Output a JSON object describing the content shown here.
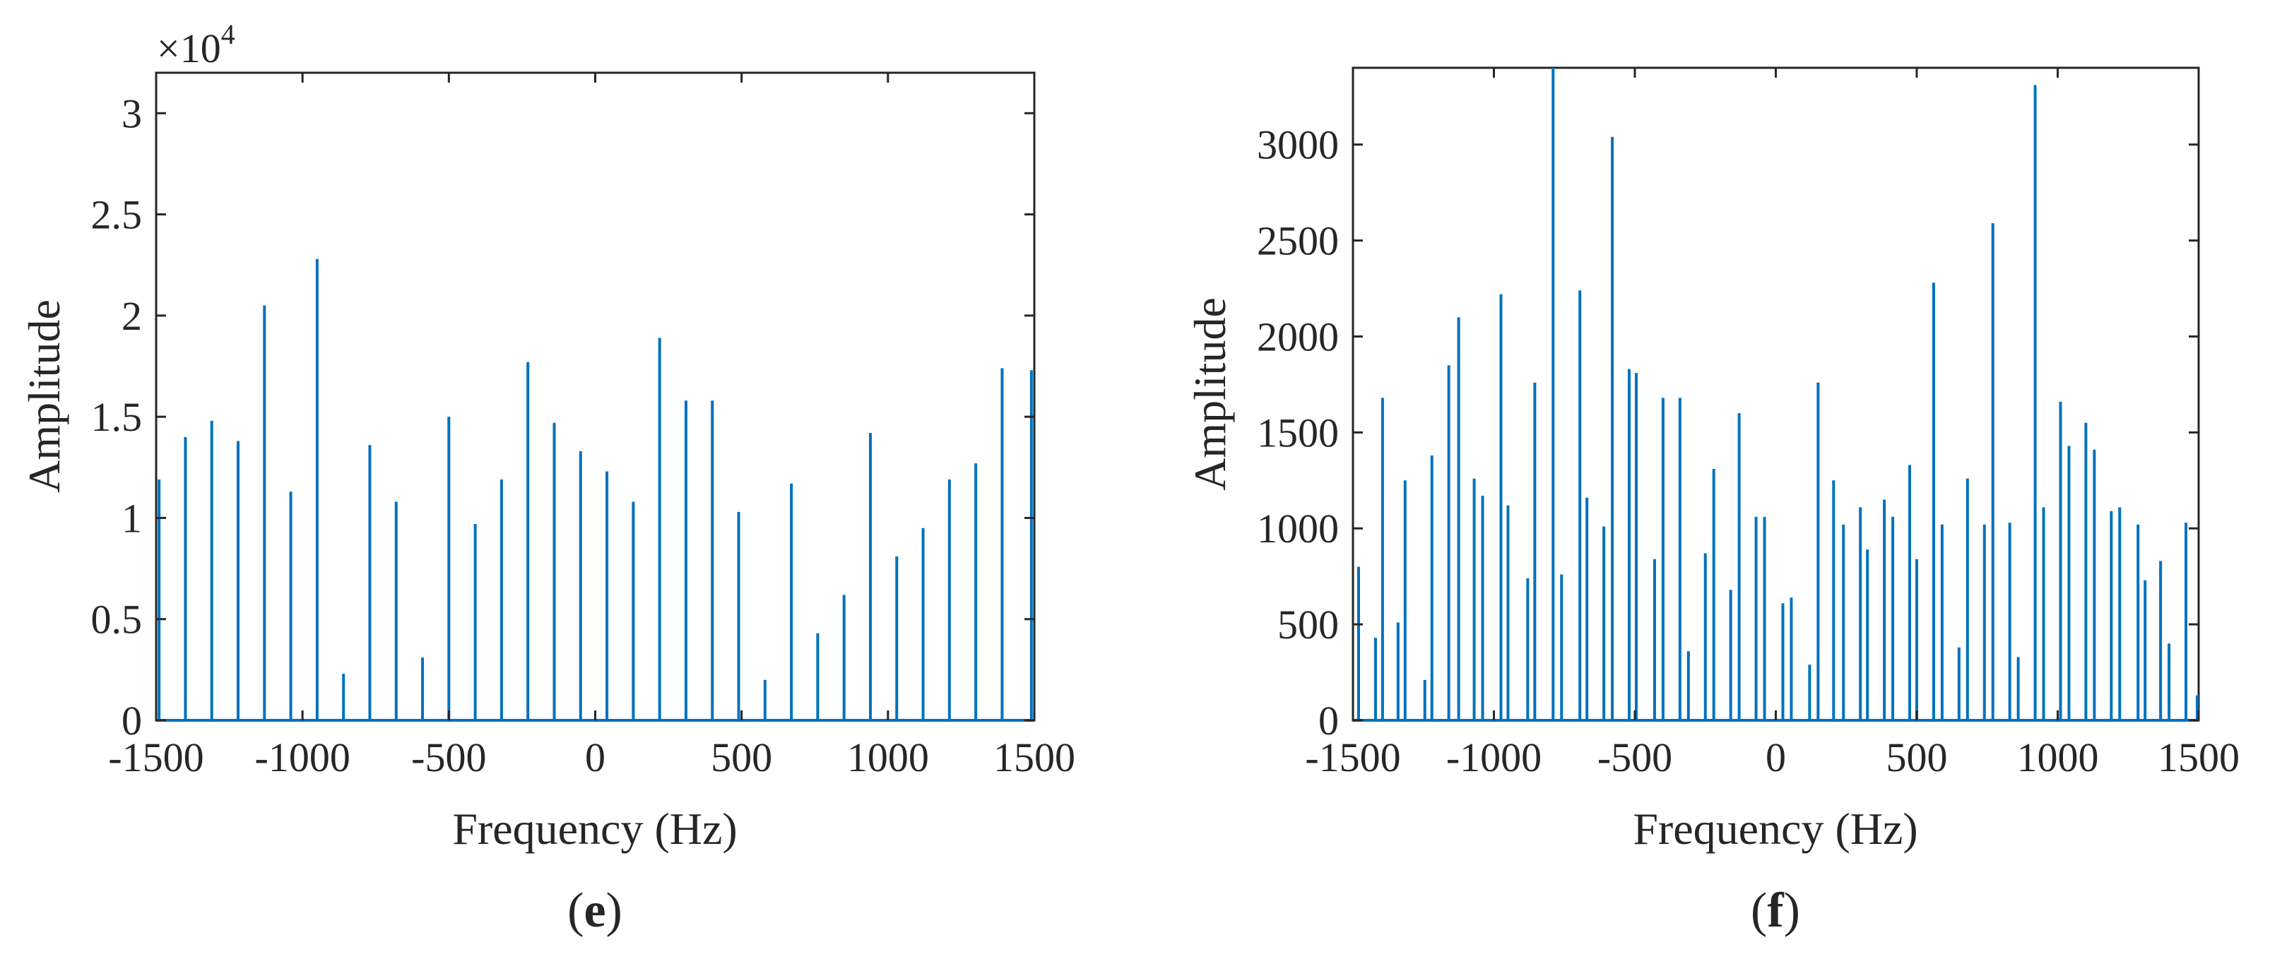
{
  "figure": {
    "background": "#ffffff",
    "stem_color": "#0072BD",
    "axis_color": "#262626"
  },
  "chart_data": [
    {
      "type": "stem",
      "panel": "e",
      "panel_label_open": "(",
      "panel_label_letter": "e",
      "panel_label_close": ")",
      "xlabel": "Frequency (Hz)",
      "ylabel": "Amplitude",
      "xlim": [
        -1500,
        1500
      ],
      "ylim": [
        0,
        32000
      ],
      "xticks": [
        -1500,
        -1000,
        -500,
        0,
        500,
        1000,
        1500
      ],
      "xtick_labels": [
        "-1500",
        "-1000",
        "-500",
        "0",
        "500",
        "1000",
        "1500"
      ],
      "yticks": [
        0,
        5000,
        10000,
        15000,
        20000,
        25000,
        30000
      ],
      "ytick_labels": [
        "0",
        "0.5",
        "1",
        "1.5",
        "2",
        "2.5",
        "3"
      ],
      "y_exponent_prefix": "×10",
      "y_exponent_power": "4",
      "x": [
        -1490,
        -1400,
        -1310,
        -1220,
        -1130,
        -1040,
        -950,
        -860,
        -770,
        -680,
        -590,
        -500,
        -410,
        -320,
        -230,
        -140,
        -50,
        40,
        130,
        220,
        310,
        400,
        490,
        580,
        670,
        760,
        850,
        940,
        1030,
        1120,
        1210,
        1300,
        1390,
        1490
      ],
      "y": [
        11900,
        14000,
        14800,
        13800,
        20500,
        11300,
        22800,
        2300,
        13600,
        10800,
        3100,
        15000,
        9700,
        11900,
        17700,
        14700,
        13300,
        12300,
        10800,
        18900,
        15800,
        15800,
        10300,
        2000,
        11700,
        4300,
        6200,
        14200,
        8100,
        9500,
        11900,
        12700,
        17400,
        17300
      ]
    },
    {
      "type": "stem",
      "panel": "f",
      "panel_label_open": "(",
      "panel_label_letter": "f",
      "panel_label_close": ")",
      "xlabel": "Frequency (Hz)",
      "ylabel": "Amplitude",
      "xlim": [
        -1500,
        1500
      ],
      "ylim": [
        0,
        3400
      ],
      "xticks": [
        -1500,
        -1000,
        -500,
        0,
        500,
        1000,
        1500
      ],
      "xtick_labels": [
        "-1500",
        "-1000",
        "-500",
        "0",
        "500",
        "1000",
        "1500"
      ],
      "yticks": [
        0,
        500,
        1000,
        1500,
        2000,
        2500,
        3000
      ],
      "ytick_labels": [
        "0",
        "500",
        "1000",
        "1500",
        "2000",
        "2500",
        "3000"
      ],
      "x": [
        -1480,
        -1420,
        -1395,
        -1340,
        -1315,
        -1245,
        -1220,
        -1160,
        -1125,
        -1070,
        -1040,
        -975,
        -950,
        -880,
        -855,
        -790,
        -760,
        -695,
        -670,
        -610,
        -580,
        -520,
        -495,
        -430,
        -400,
        -340,
        -310,
        -250,
        -220,
        -160,
        -130,
        -70,
        -40,
        25,
        55,
        120,
        150,
        205,
        240,
        300,
        325,
        385,
        415,
        475,
        500,
        560,
        590,
        650,
        680,
        740,
        770,
        830,
        860,
        920,
        950,
        1010,
        1040,
        1100,
        1130,
        1190,
        1220,
        1285,
        1310,
        1365,
        1395,
        1455,
        1495
      ],
      "y": [
        800,
        430,
        1680,
        510,
        1250,
        210,
        1380,
        1850,
        2100,
        1260,
        1170,
        2220,
        1120,
        740,
        1760,
        3400,
        760,
        2240,
        1160,
        1010,
        3040,
        1830,
        1810,
        840,
        1680,
        1680,
        360,
        870,
        1310,
        680,
        1600,
        1060,
        1060,
        610,
        640,
        290,
        1760,
        1250,
        1020,
        1110,
        890,
        1150,
        1060,
        1330,
        840,
        2280,
        1020,
        380,
        1260,
        1020,
        2590,
        1030,
        330,
        3310,
        1110,
        1660,
        1430,
        1550,
        1410,
        1090,
        1110,
        1020,
        730,
        830,
        400,
        1030,
        130
      ]
    }
  ]
}
